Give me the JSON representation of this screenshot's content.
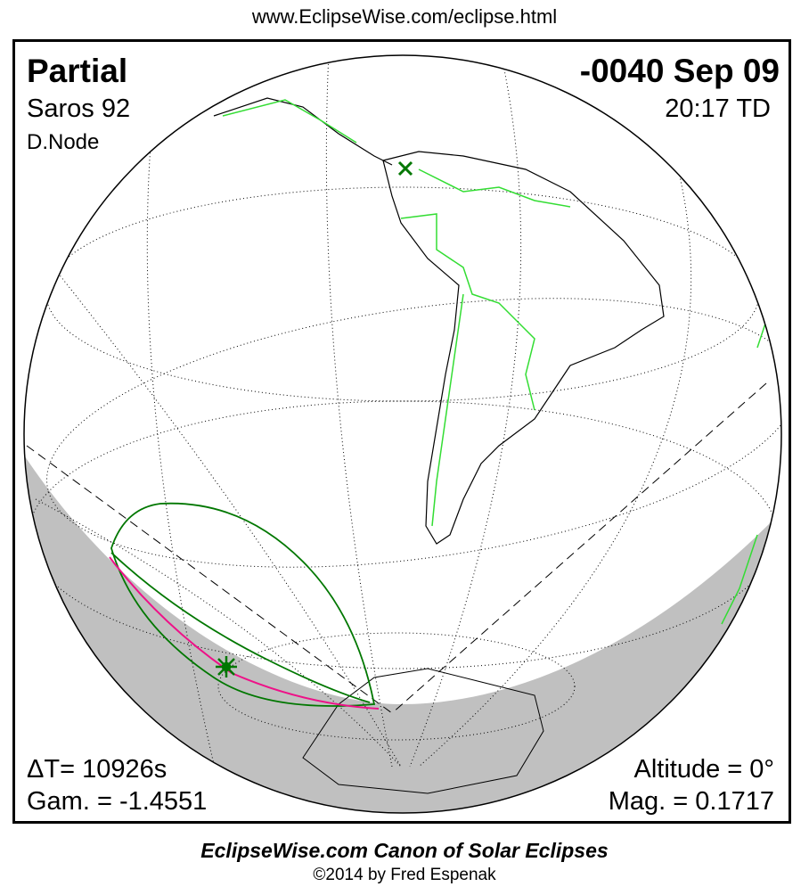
{
  "header": {
    "url": "www.EclipseWise.com/eclipse.html"
  },
  "eclipse": {
    "type": "Partial",
    "date": "-0040 Sep 09",
    "saros": "Saros  92",
    "time": "20:17 TD",
    "node": "D.Node",
    "delta_t": "ΔT=  10926s",
    "gamma": "Gam. = -1.4551",
    "altitude": "Altitude =  0°",
    "magnitude": "Mag. = 0.1717"
  },
  "footer": {
    "title": "EclipseWise.com Canon of Solar Eclipses",
    "copyright": "©2014 by Fred Espenak"
  },
  "colors": {
    "night": "#c0c0c0",
    "borders": "#33dd33",
    "eclipse_limits": "#007700",
    "central_path": "#ee1188"
  },
  "icons": {
    "greatest_eclipse": "star-burst-icon",
    "subsolar": "x-mark-icon"
  }
}
